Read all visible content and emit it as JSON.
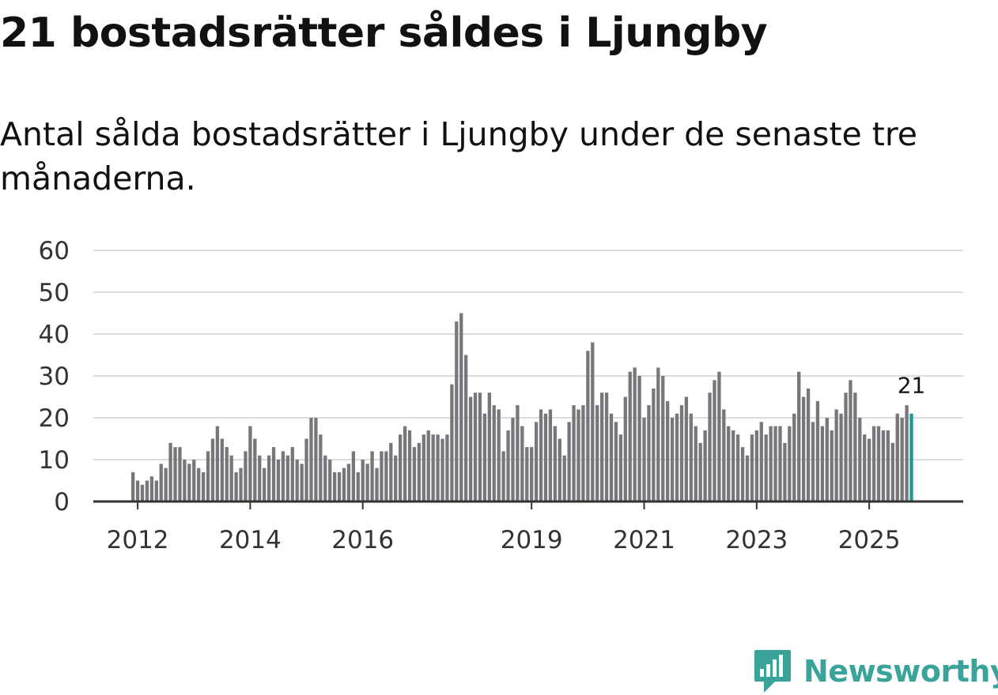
{
  "title": "21 bostadsrätter såldes i Ljungby",
  "subtitle": "Antal sålda bostadsrätter i Ljungby under de senaste tre månaderna.",
  "brand": {
    "name": "Newsworthy",
    "color": "#3aa39a"
  },
  "colors": {
    "bar": "#77767b",
    "highlight": "#1a9a90",
    "grid": "#dcdcdc",
    "axis": "#333333",
    "text": "#333333"
  },
  "chart_data": {
    "type": "bar",
    "title": "21 bostadsrätter såldes i Ljungby",
    "xlabel": "",
    "ylabel": "",
    "ylim": [
      0,
      60
    ],
    "yticks": [
      0,
      10,
      20,
      30,
      40,
      50,
      60
    ],
    "xtick_labels": [
      {
        "label": "2012",
        "year": 2012
      },
      {
        "label": "2014",
        "year": 2014
      },
      {
        "label": "2016",
        "year": 2016
      },
      {
        "label": "2019",
        "year": 2019
      },
      {
        "label": "2021",
        "year": 2021
      },
      {
        "label": "2023",
        "year": 2023
      },
      {
        "label": "2025",
        "year": 2025
      }
    ],
    "start": "2011-12",
    "end": "2025-10",
    "grid": true,
    "annotation": {
      "label": "21",
      "value": 21,
      "at": "2025-10"
    },
    "values": [
      7,
      5,
      4,
      5,
      6,
      5,
      9,
      8,
      14,
      13,
      13,
      10,
      9,
      10,
      8,
      7,
      12,
      15,
      18,
      15,
      13,
      11,
      7,
      8,
      12,
      18,
      15,
      11,
      8,
      11,
      13,
      10,
      12,
      11,
      13,
      10,
      9,
      15,
      20,
      20,
      16,
      11,
      10,
      7,
      7,
      8,
      9,
      12,
      7,
      10,
      9,
      12,
      8,
      12,
      12,
      14,
      11,
      16,
      18,
      17,
      13,
      14,
      16,
      17,
      16,
      16,
      15,
      16,
      28,
      43,
      45,
      35,
      25,
      26,
      26,
      21,
      26,
      23,
      22,
      12,
      17,
      20,
      23,
      18,
      13,
      13,
      19,
      22,
      21,
      22,
      18,
      15,
      11,
      19,
      23,
      22,
      23,
      36,
      38,
      23,
      26,
      26,
      21,
      19,
      16,
      25,
      31,
      32,
      30,
      20,
      23,
      27,
      32,
      30,
      24,
      20,
      21,
      23,
      25,
      21,
      18,
      14,
      17,
      26,
      29,
      31,
      22,
      18,
      17,
      16,
      13,
      11,
      16,
      17,
      19,
      16,
      18,
      18,
      18,
      14,
      18,
      21,
      31,
      25,
      27,
      19,
      24,
      18,
      20,
      17,
      22,
      21,
      26,
      29,
      26,
      20,
      16,
      15,
      18,
      18,
      17,
      17,
      14,
      21,
      20,
      23,
      21
    ]
  }
}
